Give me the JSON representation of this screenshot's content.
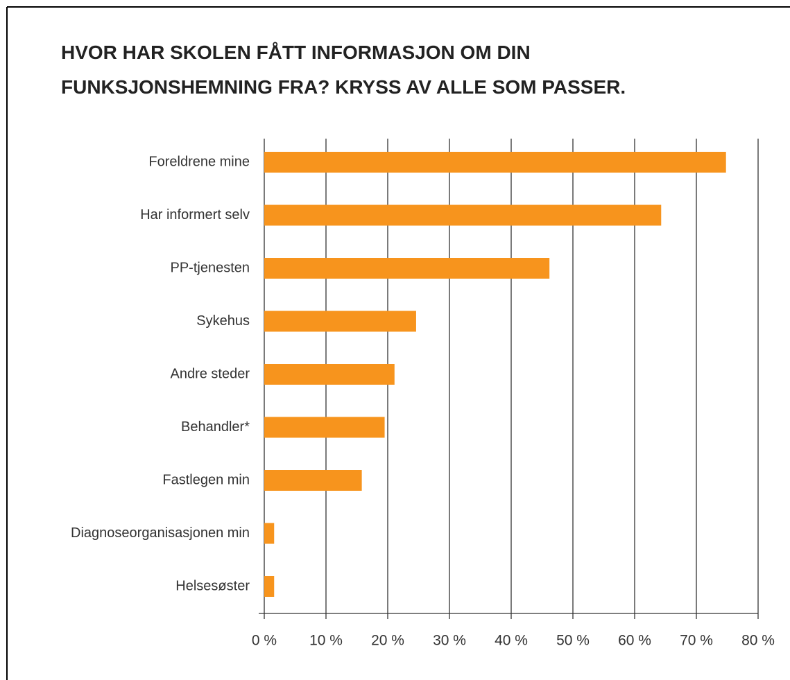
{
  "chart_data": {
    "type": "barh",
    "title": [
      "HVOR HAR SKOLEN FÅTT INFORMASJON OM DIN",
      "FUNKSJONSHEMNING FRA? KRYSS AV ALLE SOM PASSER."
    ],
    "categories": [
      "Foreldrene mine",
      "Har informert selv",
      "PP-tjenesten",
      "Sykehus",
      "Andre steder",
      "Behandler*",
      "Fastlegen min",
      "Diagnoseorganisasjonen min",
      "Helsesøster"
    ],
    "values": [
      74.8,
      64.3,
      46.2,
      24.6,
      21.1,
      19.5,
      15.8,
      1.6,
      1.6
    ],
    "color": "#f7941d",
    "xlim": [
      0,
      80
    ],
    "xticks": [
      {
        "value": 0,
        "label": "0 %"
      },
      {
        "value": 10,
        "label": "10 %"
      },
      {
        "value": 20,
        "label": "20 %"
      },
      {
        "value": 30,
        "label": "30 %"
      },
      {
        "value": 40,
        "label": "40 %"
      },
      {
        "value": 50,
        "label": "50 %"
      },
      {
        "value": 60,
        "label": "60 %"
      },
      {
        "value": 70,
        "label": "70 %"
      },
      {
        "value": 80,
        "label": "80 %"
      }
    ],
    "grid": true
  }
}
